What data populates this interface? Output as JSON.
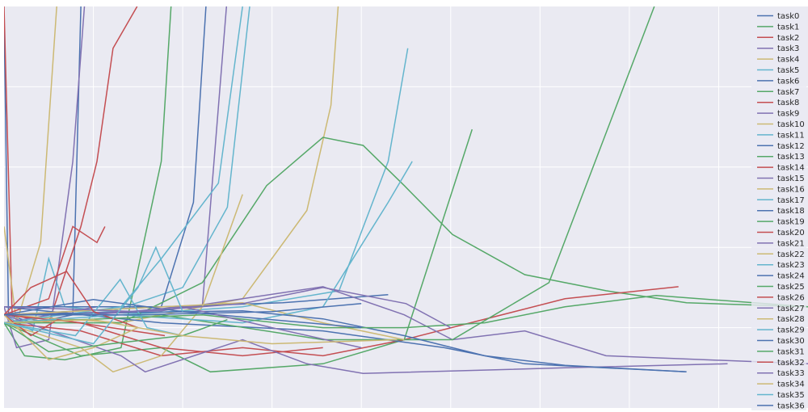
{
  "chart_data": {
    "type": "line",
    "title": "",
    "xlabel": "",
    "ylabel": "",
    "xlim": [
      0,
      9
    ],
    "ylim": [
      0,
      5
    ],
    "grid": true,
    "legend_placement": "right",
    "background_color": "#eaeaf2",
    "palette": [
      "#4c72b0",
      "#55a868",
      "#c44e52",
      "#8172b2",
      "#ccb974",
      "#64b5cd"
    ],
    "series": [
      {
        "name": "task0",
        "points": [
          [
            0,
            4.88
          ],
          [
            0.05,
            1.16
          ],
          [
            0.32,
            1.06
          ],
          [
            0.77,
            1.16
          ],
          [
            0.86,
            5
          ]
        ]
      },
      {
        "name": "task1",
        "points": [
          [
            0,
            1.06
          ],
          [
            0.23,
            0.65
          ],
          [
            0.68,
            0.6
          ],
          [
            1.31,
            0.75
          ],
          [
            1.76,
            3.07
          ],
          [
            1.87,
            5
          ]
        ]
      },
      {
        "name": "task2",
        "points": [
          [
            0,
            5
          ],
          [
            0.09,
            1.16
          ],
          [
            0.5,
            1.06
          ],
          [
            0.86,
            2.26
          ],
          [
            1.04,
            3.07
          ],
          [
            1.22,
            4.48
          ],
          [
            1.49,
            5
          ]
        ]
      },
      {
        "name": "task3",
        "points": [
          [
            0,
            1.26
          ],
          [
            0.14,
            0.75
          ],
          [
            0.5,
            0.85
          ],
          [
            0.77,
            3.07
          ],
          [
            0.9,
            5
          ]
        ]
      },
      {
        "name": "task4",
        "points": [
          [
            0,
            2.26
          ],
          [
            0.14,
            1.06
          ],
          [
            0.41,
            2.06
          ],
          [
            0.59,
            5
          ]
        ]
      },
      {
        "name": "task5",
        "points": [
          [
            0,
            1.16
          ],
          [
            0.32,
            0.96
          ],
          [
            0.5,
            1.86
          ],
          [
            0.68,
            1.26
          ],
          [
            1.2,
            1.2
          ],
          [
            2.0,
            1.5
          ],
          [
            2.5,
            2.5
          ],
          [
            2.75,
            5
          ]
        ]
      },
      {
        "name": "task6",
        "points": [
          [
            0,
            1.16
          ],
          [
            0.86,
            1.21
          ],
          [
            1.76,
            1.26
          ],
          [
            2.12,
            2.56
          ],
          [
            2.26,
            5
          ]
        ]
      },
      {
        "name": "task7",
        "points": [
          [
            0,
            1.06
          ],
          [
            0.86,
            0.65
          ],
          [
            1.76,
            0.75
          ],
          [
            2.31,
            0.45
          ],
          [
            3.57,
            0.55
          ],
          [
            4.48,
            0.85
          ],
          [
            5.24,
            3.47
          ]
        ]
      },
      {
        "name": "task8",
        "points": [
          [
            0,
            1.16
          ],
          [
            0.5,
            1.36
          ],
          [
            0.77,
            2.26
          ],
          [
            1.04,
            2.06
          ],
          [
            1.13,
            2.26
          ]
        ]
      },
      {
        "name": "task9",
        "points": [
          [
            0,
            1.06
          ],
          [
            1.04,
            1.26
          ],
          [
            2.22,
            1.26
          ],
          [
            2.49,
            5
          ]
        ]
      },
      {
        "name": "task10",
        "points": [
          [
            0,
            1.16
          ],
          [
            1.31,
            1.06
          ],
          [
            2.67,
            1.36
          ],
          [
            3.39,
            2.46
          ],
          [
            3.66,
            3.77
          ],
          [
            3.74,
            5
          ]
        ]
      },
      {
        "name": "task11",
        "points": [
          [
            0,
            1.16
          ],
          [
            1.31,
            1.16
          ],
          [
            2.67,
            1.26
          ],
          [
            3.75,
            1.46
          ],
          [
            4.3,
            3.07
          ],
          [
            4.52,
            4.48
          ]
        ]
      },
      {
        "name": "task12",
        "points": [
          [
            0,
            1.26
          ],
          [
            1.76,
            1.26
          ],
          [
            3.12,
            1.31
          ],
          [
            4.3,
            1.41
          ]
        ]
      },
      {
        "name": "task13",
        "points": [
          [
            0,
            1.06
          ],
          [
            1.31,
            1.06
          ],
          [
            2.22,
            1.56
          ],
          [
            2.94,
            2.77
          ],
          [
            3.57,
            3.37
          ],
          [
            4.02,
            3.27
          ],
          [
            4.48,
            2.77
          ],
          [
            5.02,
            2.16
          ],
          [
            5.83,
            1.66
          ],
          [
            6.74,
            1.46
          ],
          [
            7.64,
            1.31
          ],
          [
            9.0,
            1.26
          ]
        ]
      },
      {
        "name": "task14",
        "points": [
          [
            0,
            1.06
          ],
          [
            0.86,
            0.96
          ],
          [
            1.76,
            0.65
          ],
          [
            2.67,
            0.75
          ],
          [
            3.57,
            0.65
          ],
          [
            4.48,
            0.85
          ],
          [
            6.28,
            1.36
          ],
          [
            7.55,
            1.51
          ]
        ]
      },
      {
        "name": "task15",
        "points": [
          [
            0,
            1.16
          ],
          [
            1.76,
            1.21
          ],
          [
            2.67,
            1.36
          ],
          [
            3.57,
            1.51
          ],
          [
            4.48,
            1.16
          ],
          [
            5.02,
            0.85
          ],
          [
            5.83,
            0.96
          ],
          [
            6.74,
            0.65
          ],
          [
            9.0,
            0.55
          ]
        ]
      },
      {
        "name": "task16",
        "points": [
          [
            0,
            1.06
          ],
          [
            0.86,
            0.75
          ],
          [
            1.22,
            0.45
          ],
          [
            1.76,
            0.65
          ],
          [
            2.22,
            1.26
          ],
          [
            2.67,
            2.66
          ]
        ]
      },
      {
        "name": "task17",
        "points": [
          [
            0,
            1.06
          ],
          [
            1.31,
            1.26
          ],
          [
            1.76,
            1.86
          ],
          [
            2.4,
            2.8
          ],
          [
            2.67,
            5
          ]
        ]
      },
      {
        "name": "task18",
        "points": [
          [
            0,
            1.26
          ],
          [
            1.76,
            1.06
          ],
          [
            3.57,
            0.96
          ],
          [
            4.93,
            0.75
          ],
          [
            5.83,
            0.55
          ],
          [
            7.64,
            0.45
          ]
        ]
      },
      {
        "name": "task19",
        "points": [
          [
            0,
            1.16
          ],
          [
            1.76,
            1.16
          ],
          [
            3.57,
            0.85
          ],
          [
            5.02,
            0.85
          ],
          [
            6.1,
            1.56
          ],
          [
            7.28,
            5
          ]
        ]
      },
      {
        "name": "task20",
        "points": [
          [
            0,
            1.16
          ],
          [
            0.86,
            1.06
          ],
          [
            1.76,
            0.75
          ],
          [
            2.67,
            0.65
          ],
          [
            3.57,
            0.75
          ]
        ]
      },
      {
        "name": "task21",
        "points": [
          [
            0,
            1.16
          ],
          [
            1.31,
            0.65
          ],
          [
            1.58,
            0.45
          ],
          [
            2.67,
            0.85
          ],
          [
            3.39,
            0.55
          ],
          [
            4.02,
            0.43
          ],
          [
            6.28,
            0.5
          ],
          [
            8.1,
            0.55
          ]
        ]
      },
      {
        "name": "task22",
        "points": [
          [
            0,
            1.16
          ],
          [
            2.67,
            1.31
          ],
          [
            3.57,
            1.06
          ],
          [
            4.48,
            0.85
          ]
        ]
      },
      {
        "name": "task23",
        "points": [
          [
            0,
            1.06
          ],
          [
            1.31,
            1.16
          ],
          [
            2.67,
            1.06
          ],
          [
            3.57,
            1.26
          ],
          [
            4.3,
            2.56
          ],
          [
            4.57,
            3.07
          ]
        ]
      },
      {
        "name": "task24",
        "points": [
          [
            0,
            1.16
          ],
          [
            2.67,
            1.21
          ],
          [
            3.57,
            1.11
          ],
          [
            4.48,
            0.9
          ],
          [
            5.38,
            0.65
          ],
          [
            6.28,
            0.53
          ],
          [
            7.64,
            0.45
          ]
        ]
      },
      {
        "name": "task25",
        "points": [
          [
            0,
            1.06
          ],
          [
            2.22,
            1.16
          ],
          [
            3.57,
            1.0
          ],
          [
            4.48,
            1.0
          ],
          [
            5.38,
            1.06
          ],
          [
            6.28,
            1.26
          ],
          [
            7.3,
            1.4
          ],
          [
            9.0,
            1.26
          ]
        ]
      },
      {
        "name": "task26",
        "points": [
          [
            0,
            1.16
          ],
          [
            0.3,
            0.9
          ],
          [
            0.6,
            1.1
          ],
          [
            1.2,
            1.0
          ],
          [
            1.8,
            0.9
          ]
        ]
      },
      {
        "name": "task27",
        "points": [
          [
            0,
            1.26
          ],
          [
            1.5,
            1.2
          ],
          [
            2.67,
            1.3
          ],
          [
            3.57,
            1.5
          ],
          [
            4.5,
            1.3
          ],
          [
            5.0,
            1.0
          ]
        ]
      },
      {
        "name": "task28",
        "points": [
          [
            0,
            1.16
          ],
          [
            0.5,
            0.6
          ],
          [
            1.0,
            0.75
          ],
          [
            1.5,
            1.0
          ]
        ]
      },
      {
        "name": "task29",
        "points": [
          [
            0,
            1.06
          ],
          [
            0.8,
            0.9
          ],
          [
            1.3,
            1.6
          ],
          [
            1.6,
            1.0
          ],
          [
            2.0,
            0.9
          ]
        ]
      },
      {
        "name": "task30",
        "points": [
          [
            0,
            1.16
          ],
          [
            1.0,
            1.35
          ],
          [
            2.0,
            1.2
          ],
          [
            3.0,
            1.1
          ],
          [
            4.0,
            1.0
          ]
        ]
      },
      {
        "name": "task31",
        "points": [
          [
            0,
            1.06
          ],
          [
            0.5,
            0.7
          ],
          [
            1.2,
            0.8
          ],
          [
            2.0,
            0.9
          ],
          [
            2.5,
            1.1
          ]
        ]
      },
      {
        "name": "task32",
        "points": [
          [
            0,
            1.16
          ],
          [
            0.3,
            1.5
          ],
          [
            0.7,
            1.7
          ],
          [
            1.0,
            1.2
          ],
          [
            1.5,
            1.0
          ]
        ]
      },
      {
        "name": "task33",
        "points": [
          [
            0,
            1.16
          ],
          [
            1.0,
            1.16
          ],
          [
            2.0,
            1.26
          ],
          [
            3.0,
            1.0
          ],
          [
            4.0,
            0.75
          ]
        ]
      },
      {
        "name": "task34",
        "points": [
          [
            0,
            1.06
          ],
          [
            1.0,
            1.1
          ],
          [
            2.0,
            0.9
          ],
          [
            3.0,
            0.8
          ],
          [
            4.4,
            0.85
          ]
        ]
      },
      {
        "name": "task35",
        "points": [
          [
            0,
            1.06
          ],
          [
            1.0,
            0.8
          ],
          [
            1.5,
            1.5
          ],
          [
            1.7,
            2.0
          ],
          [
            2.0,
            1.2
          ]
        ]
      },
      {
        "name": "task36",
        "points": [
          [
            0,
            1.16
          ],
          [
            1.5,
            1.16
          ],
          [
            3.0,
            1.2
          ],
          [
            4.0,
            1.3
          ]
        ]
      }
    ]
  }
}
